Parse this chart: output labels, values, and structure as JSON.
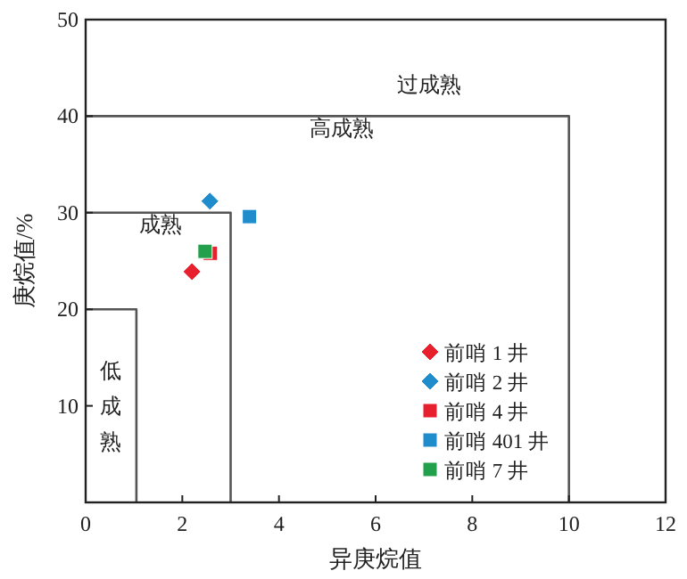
{
  "chart_data": {
    "type": "scatter",
    "xlabel": "异庚烷值",
    "ylabel": "庚烷值/%",
    "xlim": [
      0,
      12
    ],
    "ylim": [
      0,
      50
    ],
    "xticks": [
      0,
      2,
      4,
      6,
      8,
      10,
      12
    ],
    "yticks": [
      {
        "value": 0,
        "label": null
      },
      10,
      20,
      30,
      40,
      50
    ],
    "grid": false,
    "legend": "bottom right",
    "series": [
      {
        "type": "line",
        "name": "低成熟",
        "color": "#555555",
        "x": [
          0,
          1.05,
          1.05
        ],
        "values": [
          20,
          20,
          0
        ]
      },
      {
        "type": "line",
        "name": "成熟",
        "color": "#555555",
        "x": [
          0,
          3,
          3
        ],
        "values": [
          30,
          30,
          0
        ]
      },
      {
        "type": "line",
        "name": "高成熟",
        "color": "#555555",
        "x": [
          0,
          10,
          10
        ],
        "values": [
          40,
          40,
          0
        ]
      },
      {
        "name": "前哨 1 井",
        "color": "#e8202e",
        "marker": "diamond",
        "x": [
          2.2
        ],
        "values": [
          23.9
        ]
      },
      {
        "name": "前哨 2 井",
        "color": "#1f8ccb",
        "marker": "diamond",
        "x": [
          2.57
        ],
        "values": [
          31.2
        ]
      },
      {
        "name": "前哨 4 井",
        "color": "#e8202e",
        "marker": "square",
        "x": [
          2.58
        ],
        "values": [
          25.8
        ]
      },
      {
        "name": "前哨 401 井",
        "color": "#1f8ccb",
        "marker": "square",
        "x": [
          3.39
        ],
        "values": [
          29.6
        ]
      },
      {
        "name": "前哨 7 井",
        "color": "#22a04b",
        "marker": "square",
        "x": [
          2.47
        ],
        "values": [
          26.0
        ]
      }
    ],
    "annotations": [
      "过成熟"
    ]
  }
}
